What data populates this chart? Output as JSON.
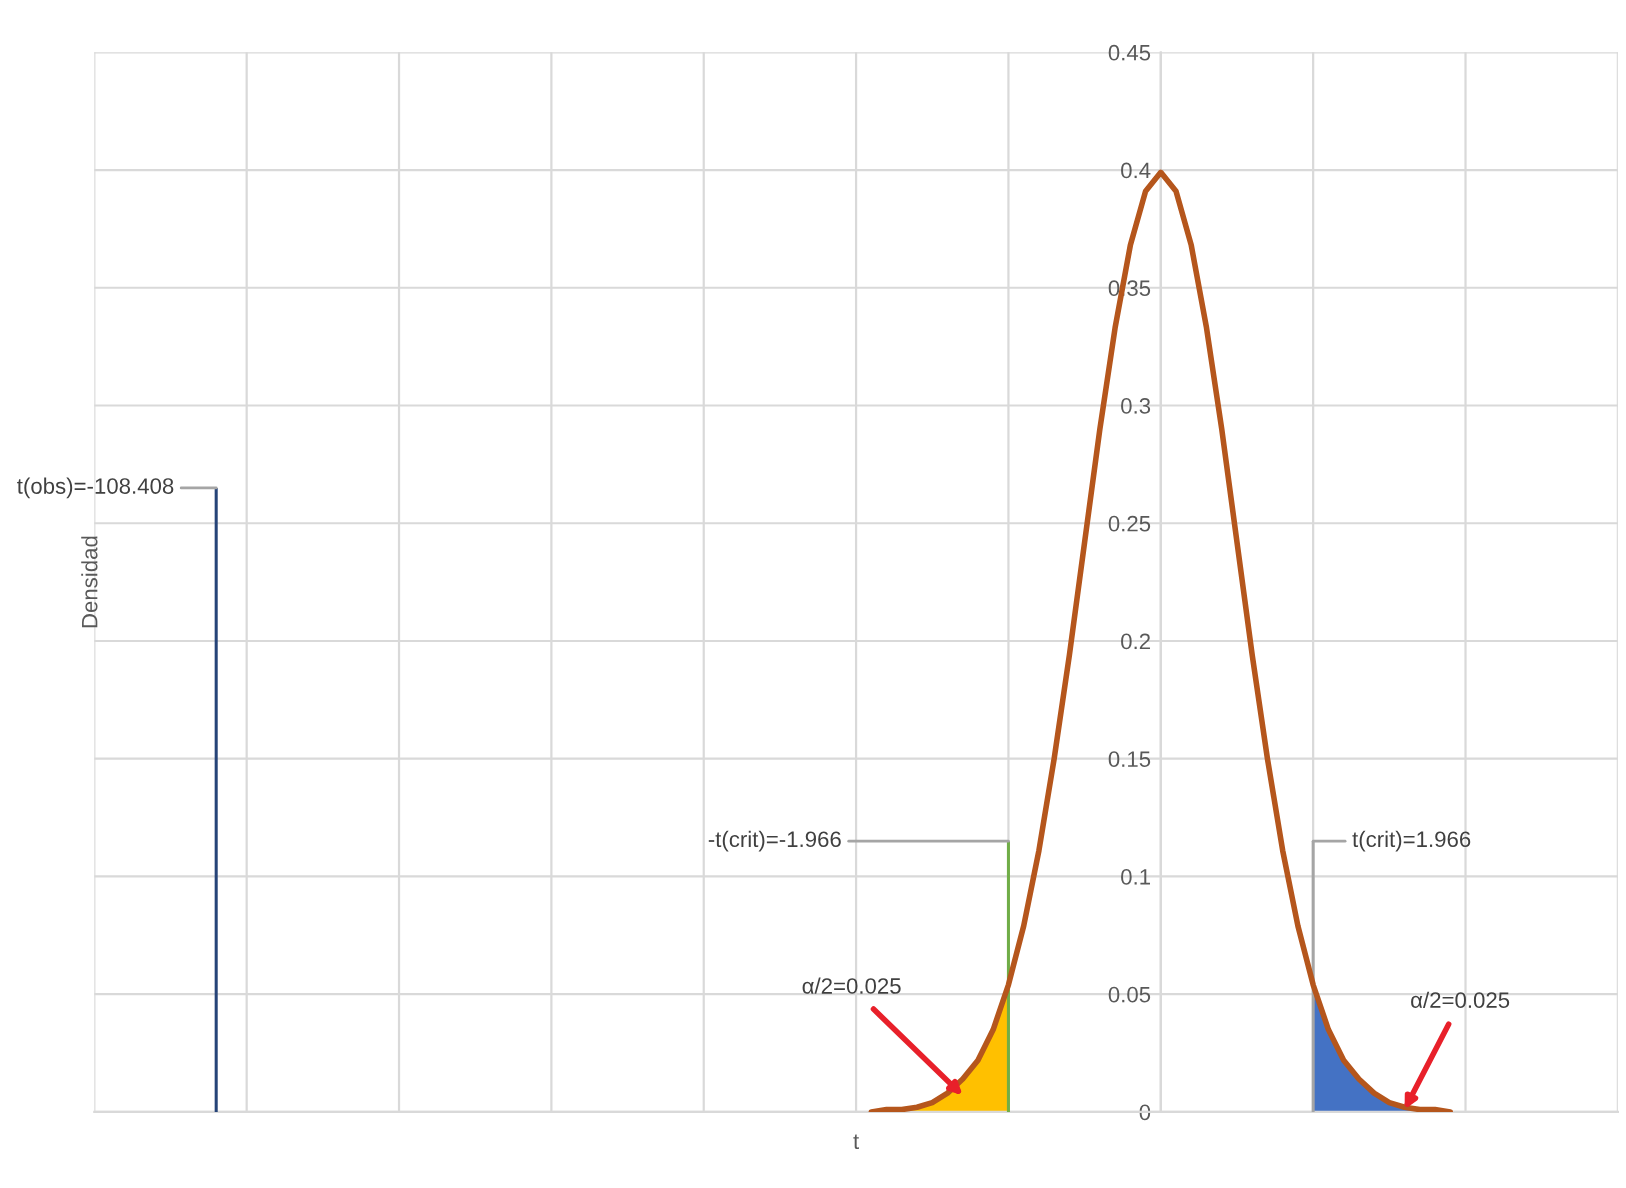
{
  "chart_data": {
    "type": "line",
    "xlabel": "t",
    "ylabel": "Densidad",
    "categories": [
      null,
      null,
      null,
      null,
      null,
      null,
      null,
      null,
      null,
      null,
      null,
      null,
      null,
      null,
      null,
      null,
      null,
      null,
      null,
      null,
      null,
      null,
      null,
      null,
      null,
      null,
      null,
      null,
      null,
      null,
      null,
      null,
      null,
      null,
      null,
      null,
      null,
      null,
      null,
      null,
      null,
      null,
      null,
      null,
      null,
      null,
      null,
      null,
      null,
      null,
      null,
      null,
      null,
      null,
      null,
      null,
      null,
      null,
      null,
      null,
      null,
      null,
      null,
      null,
      null,
      null,
      null,
      null,
      null,
      null,
      null,
      null,
      null,
      null,
      null,
      null,
      null,
      null,
      null,
      null,
      null,
      null,
      null,
      null,
      null,
      null,
      null,
      null,
      null,
      null,
      null,
      null,
      null,
      null,
      null,
      null,
      null,
      null,
      null,
      null,
      null
    ],
    "ylim": [
      0,
      0.45
    ],
    "yticks": [
      0,
      0.05,
      0.1,
      0.15,
      0.2,
      0.25,
      0.3,
      0.35,
      0.4,
      0.45
    ],
    "grid": true,
    "tick_labels": "y",
    "series": [
      {
        "color": "#b5561c",
        "values": [
          null,
          null,
          null,
          null,
          null,
          null,
          null,
          null,
          null,
          null,
          null,
          null,
          null,
          null,
          null,
          null,
          null,
          null,
          null,
          null,
          null,
          null,
          null,
          null,
          null,
          null,
          null,
          null,
          null,
          null,
          null,
          null,
          null,
          null,
          null,
          null,
          null,
          null,
          null,
          null,
          null,
          null,
          null,
          null,
          null,
          null,
          null,
          null,
          null,
          null,
          null,
          0.0,
          0.001,
          0.001,
          0.002,
          0.004,
          0.008,
          0.014,
          0.022,
          0.035,
          0.054,
          0.079,
          0.111,
          0.15,
          0.194,
          0.242,
          0.29,
          0.333,
          0.368,
          0.391,
          0.399,
          0.391,
          0.368,
          0.333,
          0.29,
          0.242,
          0.194,
          0.15,
          0.111,
          0.079,
          0.054,
          0.035,
          0.022,
          0.014,
          0.008,
          0.004,
          0.002,
          0.001,
          0.001,
          0.0,
          null,
          null,
          null,
          null,
          null,
          null,
          null,
          null,
          null,
          null,
          null
        ]
      },
      {
        "type": "area",
        "color": "#ffc000",
        "values": [
          null,
          null,
          null,
          null,
          null,
          null,
          null,
          null,
          null,
          null,
          null,
          null,
          null,
          null,
          null,
          null,
          null,
          null,
          null,
          null,
          null,
          null,
          null,
          null,
          null,
          null,
          null,
          null,
          null,
          null,
          null,
          null,
          null,
          null,
          null,
          null,
          null,
          null,
          null,
          null,
          null,
          null,
          null,
          null,
          null,
          null,
          null,
          null,
          null,
          null,
          null,
          0.0,
          0.001,
          0.001,
          0.002,
          0.004,
          0.008,
          0.014,
          0.022,
          0.035,
          0.054,
          null,
          null,
          null,
          null,
          null,
          null,
          null,
          null,
          null,
          null,
          null,
          null,
          null,
          null,
          null,
          null,
          null,
          null,
          null,
          null,
          null,
          null,
          null,
          null,
          null,
          null,
          null,
          null,
          null,
          null,
          null,
          null,
          null,
          null,
          null,
          null,
          null,
          null,
          null,
          null
        ]
      },
      {
        "type": "area",
        "color": "#4472c4",
        "values": [
          null,
          null,
          null,
          null,
          null,
          null,
          null,
          null,
          null,
          null,
          null,
          null,
          null,
          null,
          null,
          null,
          null,
          null,
          null,
          null,
          null,
          null,
          null,
          null,
          null,
          null,
          null,
          null,
          null,
          null,
          null,
          null,
          null,
          null,
          null,
          null,
          null,
          null,
          null,
          null,
          null,
          null,
          null,
          null,
          null,
          null,
          null,
          null,
          null,
          null,
          null,
          null,
          null,
          null,
          null,
          null,
          null,
          null,
          null,
          null,
          null,
          null,
          null,
          null,
          null,
          null,
          null,
          null,
          null,
          null,
          null,
          null,
          null,
          null,
          null,
          null,
          null,
          null,
          null,
          null,
          0.054,
          0.035,
          0.022,
          0.014,
          0.008,
          0.004,
          0.002,
          0.001,
          0.001,
          0.0,
          null,
          null,
          null,
          null,
          null,
          null,
          null,
          null,
          null,
          null,
          null
        ]
      },
      {
        "type": "bar",
        "color": "#70ad47",
        "values": [
          null,
          null,
          null,
          null,
          null,
          null,
          null,
          null,
          null,
          null,
          null,
          null,
          null,
          null,
          null,
          null,
          null,
          null,
          null,
          null,
          null,
          null,
          null,
          null,
          null,
          null,
          null,
          null,
          null,
          null,
          null,
          null,
          null,
          null,
          null,
          null,
          null,
          null,
          null,
          null,
          null,
          null,
          null,
          null,
          null,
          null,
          null,
          null,
          null,
          null,
          null,
          null,
          null,
          null,
          null,
          null,
          null,
          null,
          null,
          null,
          0.115,
          null,
          null,
          null,
          null,
          null,
          null,
          null,
          null,
          null,
          null,
          null,
          null,
          null,
          null,
          null,
          null,
          null,
          null,
          null,
          null,
          null,
          null,
          null,
          null,
          null,
          null,
          null,
          null,
          null,
          null,
          null,
          null,
          null,
          null,
          null,
          null,
          null,
          null,
          null,
          null
        ]
      },
      {
        "type": "bar",
        "color": "#a5a5a5",
        "values": [
          null,
          null,
          null,
          null,
          null,
          null,
          null,
          null,
          null,
          null,
          null,
          null,
          null,
          null,
          null,
          null,
          null,
          null,
          null,
          null,
          null,
          null,
          null,
          null,
          null,
          null,
          null,
          null,
          null,
          null,
          null,
          null,
          null,
          null,
          null,
          null,
          null,
          null,
          null,
          null,
          null,
          null,
          null,
          null,
          null,
          null,
          null,
          null,
          null,
          null,
          null,
          null,
          null,
          null,
          null,
          null,
          null,
          null,
          null,
          null,
          null,
          null,
          null,
          null,
          null,
          null,
          null,
          null,
          null,
          null,
          null,
          null,
          null,
          null,
          null,
          null,
          null,
          null,
          null,
          null,
          0.115,
          null,
          null,
          null,
          null,
          null,
          null,
          null,
          null,
          null,
          null,
          null,
          null,
          null,
          null,
          null,
          null,
          null,
          null,
          null,
          null
        ]
      },
      {
        "type": "bar",
        "color": "#264478",
        "values": [
          null,
          null,
          null,
          null,
          null,
          null,
          null,
          null,
          0.265,
          null,
          null,
          null,
          null,
          null,
          null,
          null,
          null,
          null,
          null,
          null,
          null,
          null,
          null,
          null,
          null,
          null,
          null,
          null,
          null,
          null,
          null,
          null,
          null,
          null,
          null,
          null,
          null,
          null,
          null,
          null,
          null,
          null,
          null,
          null,
          null,
          null,
          null,
          null,
          null,
          null,
          null,
          null,
          null,
          null,
          null,
          null,
          null,
          null,
          null,
          null,
          null,
          null,
          null,
          null,
          null,
          null,
          null,
          null,
          null,
          null,
          null,
          null,
          null,
          null,
          null,
          null,
          null,
          null,
          null,
          null,
          null,
          null,
          null,
          null,
          null,
          null,
          null,
          null,
          null,
          null,
          null,
          null,
          null,
          null,
          null,
          null,
          null,
          null,
          null,
          null,
          null
        ]
      }
    ],
    "annotations": [
      "-t(crit)=-1.966",
      "t(crit)=1.966",
      "t(obs)=-108.408",
      "α/2=0.025",
      "α/2=0.025"
    ]
  }
}
